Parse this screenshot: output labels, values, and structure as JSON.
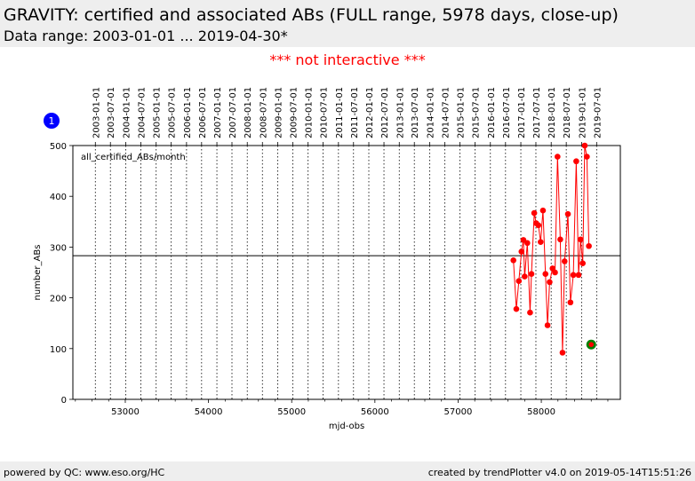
{
  "header": {
    "title": "GRAVITY: certified and associated ABs (FULL range, 5978 days, close-up)",
    "subtitle": "Data range: 2003-01-01 ... 2019-04-30*"
  },
  "notice": "*** not interactive ***",
  "badge": "1",
  "footer": {
    "left": "powered by QC: www.eso.org/HC",
    "right": "created by trendPlotter v4.0 on 2019-05-14T15:51:26"
  },
  "colors": {
    "series": "#ff0000",
    "last_point": "#008000",
    "badge": "#0000ff",
    "reference_line": "#000000"
  },
  "chart_data": {
    "type": "scatter",
    "xlabel": "mjd-obs",
    "ylabel": "number_ABs",
    "xlim": [
      52370,
      58950
    ],
    "ylim": [
      0,
      500
    ],
    "x_ticks": [
      53000,
      54000,
      55000,
      56000,
      57000,
      58000
    ],
    "y_ticks": [
      0,
      100,
      200,
      300,
      400,
      500
    ],
    "grid": "vertical dotted lines at each date tick",
    "top_axis_dates": [
      "2003-01-01",
      "2003-07-01",
      "2004-01-01",
      "2004-07-01",
      "2005-01-01",
      "2005-07-01",
      "2006-01-01",
      "2006-07-01",
      "2007-01-01",
      "2007-07-01",
      "2008-01-01",
      "2008-07-01",
      "2009-01-01",
      "2009-07-01",
      "2010-01-01",
      "2010-07-01",
      "2011-01-01",
      "2011-07-01",
      "2012-01-01",
      "2012-07-01",
      "2013-01-01",
      "2013-07-01",
      "2014-01-01",
      "2014-07-01",
      "2015-01-01",
      "2015-07-01",
      "2016-01-01",
      "2016-07-01",
      "2017-01-01",
      "2017-07-01",
      "2018-01-01",
      "2018-07-01",
      "2019-01-01",
      "2019-07-01"
    ],
    "top_axis_mjd": [
      52640,
      52821,
      53005,
      53187,
      53371,
      53552,
      53736,
      53917,
      54101,
      54282,
      54466,
      54648,
      54832,
      55013,
      55197,
      55378,
      55562,
      55743,
      55927,
      56109,
      56293,
      56474,
      56658,
      56839,
      57023,
      57204,
      57388,
      57570,
      57754,
      57935,
      58119,
      58300,
      58484,
      58665
    ],
    "series": [
      {
        "name": "all_certified_ABs/month",
        "points": [
          [
            57665,
            274
          ],
          [
            57700,
            178
          ],
          [
            57730,
            233
          ],
          [
            57762,
            291
          ],
          [
            57785,
            314
          ],
          [
            57800,
            242
          ],
          [
            57832,
            308
          ],
          [
            57865,
            171
          ],
          [
            57882,
            247
          ],
          [
            57915,
            367
          ],
          [
            57938,
            347
          ],
          [
            57965,
            343
          ],
          [
            57992,
            310
          ],
          [
            58020,
            372
          ],
          [
            58050,
            247
          ],
          [
            58075,
            146
          ],
          [
            58100,
            231
          ],
          [
            58135,
            258
          ],
          [
            58165,
            250
          ],
          [
            58195,
            478
          ],
          [
            58228,
            315
          ],
          [
            58255,
            92
          ],
          [
            58280,
            272
          ],
          [
            58320,
            365
          ],
          [
            58350,
            191
          ],
          [
            58385,
            245
          ],
          [
            58420,
            469
          ],
          [
            58448,
            245
          ],
          [
            58472,
            315
          ],
          [
            58498,
            268
          ],
          [
            58522,
            500
          ],
          [
            58548,
            478
          ],
          [
            58572,
            302
          ]
        ]
      }
    ],
    "last_point": [
      58600,
      108
    ],
    "reference_line_y": 283
  }
}
